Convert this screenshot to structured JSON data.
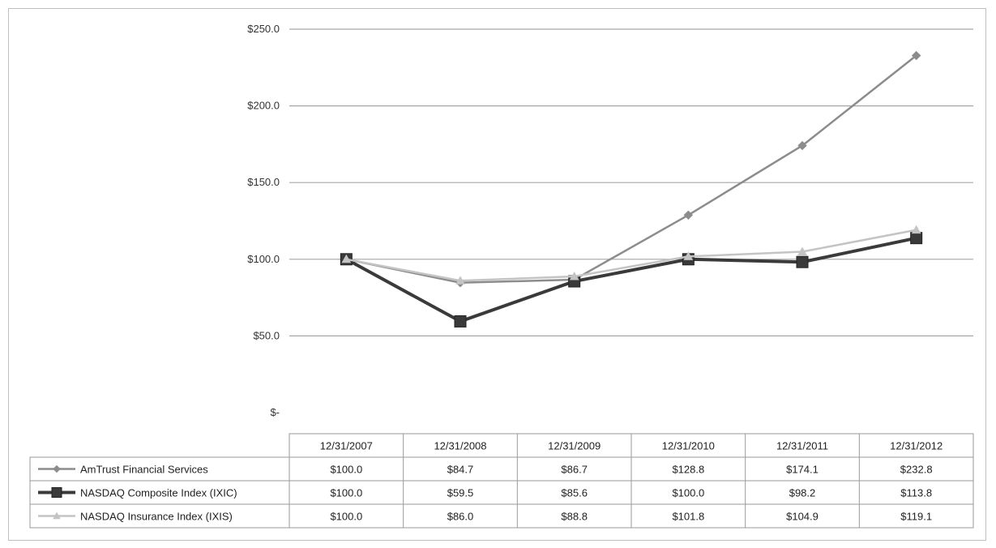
{
  "chart_data": {
    "type": "line",
    "title": "",
    "xlabel": "",
    "ylabel": "",
    "categories": [
      "12/31/2007",
      "12/31/2008",
      "12/31/2009",
      "12/31/2010",
      "12/31/2011",
      "12/31/2012"
    ],
    "ylim": [
      0,
      250
    ],
    "y_ticks": [
      0,
      50,
      100,
      150,
      200,
      250
    ],
    "y_tick_labels": [
      "$-",
      "$50.0",
      "$100.0",
      "$150.0",
      "$200.0",
      "$250.0"
    ],
    "grid": true,
    "legend": "data-table-left",
    "series": [
      {
        "name": "AmTrust Financial Services",
        "values": [
          100.0,
          84.7,
          86.7,
          128.8,
          174.1,
          232.8
        ],
        "labels": [
          "$100.0",
          "$84.7",
          "$86.7",
          "$128.8",
          "$174.1",
          "$232.8"
        ],
        "color": "#8c8c8c",
        "marker": "diamond"
      },
      {
        "name": "NASDAQ Composite Index (IXIC)",
        "values": [
          100.0,
          59.5,
          85.6,
          100.0,
          98.2,
          113.8
        ],
        "labels": [
          "$100.0",
          "$59.5",
          "$85.6",
          "$100.0",
          "$98.2",
          "$113.8"
        ],
        "color": "#3a3a3a",
        "marker": "square"
      },
      {
        "name": "NASDAQ Insurance Index (IXIS)",
        "values": [
          100.0,
          86.0,
          88.8,
          101.8,
          104.9,
          119.1
        ],
        "labels": [
          "$100.0",
          "$86.0",
          "$88.8",
          "$101.8",
          "$104.9",
          "$119.1"
        ],
        "color": "#c4c4c4",
        "marker": "triangle"
      }
    ]
  }
}
